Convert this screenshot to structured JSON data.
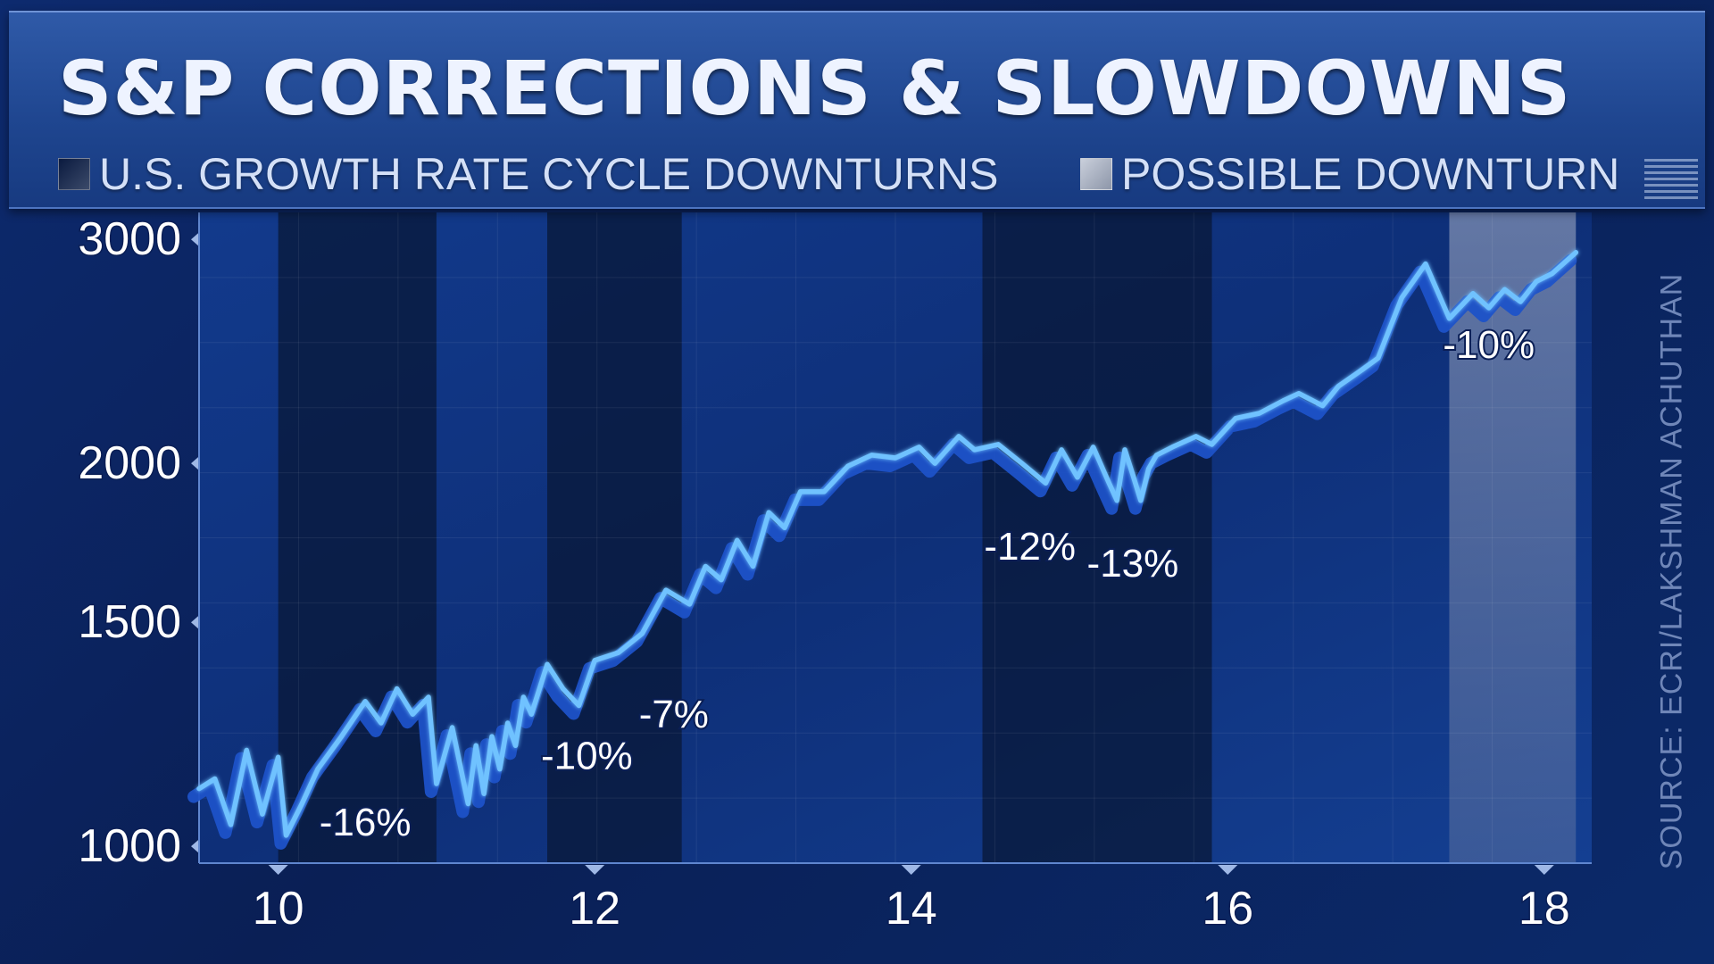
{
  "header": {
    "title": "S&P CORRECTIONS & SLOWDOWNS",
    "legend": [
      {
        "label": "U.S. GROWTH RATE CYCLE DOWNTURNS",
        "color": "#0a1a3f"
      },
      {
        "label": "POSSIBLE DOWNTURN",
        "color": "#aab1c2"
      }
    ]
  },
  "source": "SOURCE: ECRI/LAKSHMAN ACHUTHAN",
  "colors": {
    "line": "#6fc2ff",
    "line_shadow": "#1d52c8",
    "downturn_band": "#081633",
    "possible_band": "#8a93ad",
    "axis_text": "#ffffff"
  },
  "chart_data": {
    "type": "line",
    "title": "S&P CORRECTIONS & SLOWDOWNS",
    "xlabel": "",
    "ylabel": "",
    "scale_y": "log",
    "xlim": [
      9.5,
      18.3
    ],
    "ylim": [
      970,
      3150
    ],
    "x_ticks": [
      10,
      12,
      14,
      16,
      18
    ],
    "y_ticks": [
      1000,
      1500,
      2000,
      3000
    ],
    "grid": true,
    "legend_position": "top",
    "series": [
      {
        "x": [
          9.5,
          9.6,
          9.7,
          9.8,
          9.9,
          10.0,
          10.05,
          10.15,
          10.25,
          10.4,
          10.55,
          10.65,
          10.75,
          10.85,
          10.95,
          11.0,
          11.1,
          11.2,
          11.25,
          11.3,
          11.35,
          11.4,
          11.45,
          11.5,
          11.55,
          11.6,
          11.7,
          11.8,
          11.9,
          12.0,
          12.15,
          12.3,
          12.45,
          12.6,
          12.7,
          12.8,
          12.9,
          13.0,
          13.1,
          13.2,
          13.3,
          13.45,
          13.6,
          13.75,
          13.9,
          14.05,
          14.15,
          14.3,
          14.4,
          14.55,
          14.7,
          14.85,
          14.95,
          15.05,
          15.15,
          15.25,
          15.3,
          15.35,
          15.4,
          15.45,
          15.5,
          15.55,
          15.65,
          15.8,
          15.9,
          16.05,
          16.2,
          16.35,
          16.45,
          16.6,
          16.7,
          16.85,
          16.95,
          17.1,
          17.25,
          17.4,
          17.55,
          17.65,
          17.75,
          17.85,
          17.95,
          18.05,
          18.2
        ],
        "y": [
          1110,
          1130,
          1040,
          1190,
          1060,
          1175,
          1020,
          1080,
          1150,
          1220,
          1300,
          1250,
          1330,
          1270,
          1310,
          1120,
          1240,
          1080,
          1200,
          1100,
          1220,
          1150,
          1250,
          1200,
          1310,
          1270,
          1390,
          1330,
          1290,
          1400,
          1420,
          1470,
          1590,
          1550,
          1660,
          1620,
          1740,
          1660,
          1830,
          1780,
          1900,
          1900,
          1990,
          2030,
          2020,
          2060,
          2000,
          2100,
          2050,
          2070,
          2000,
          1930,
          2050,
          1950,
          2060,
          1930,
          1870,
          2050,
          1960,
          1870,
          1980,
          2030,
          2060,
          2100,
          2070,
          2170,
          2190,
          2240,
          2270,
          2220,
          2300,
          2370,
          2420,
          2700,
          2870,
          2600,
          2720,
          2650,
          2740,
          2680,
          2780,
          2820,
          2930
        ]
      }
    ],
    "downturn_periods": [
      [
        10.0,
        11.0
      ],
      [
        11.7,
        12.55
      ],
      [
        14.45,
        15.9
      ]
    ],
    "possible_downturn_periods": [
      [
        17.4,
        18.2
      ]
    ],
    "annotations": [
      {
        "text": "-16%",
        "x": 10.55,
        "y": 1020
      },
      {
        "text": "-10%",
        "x": 11.95,
        "y": 1150
      },
      {
        "text": "-7%",
        "x": 12.5,
        "y": 1240
      },
      {
        "text": "-12%",
        "x": 14.75,
        "y": 1680
      },
      {
        "text": "-13%",
        "x": 15.4,
        "y": 1630
      },
      {
        "text": "-10%",
        "x": 17.65,
        "y": 2420
      }
    ]
  }
}
